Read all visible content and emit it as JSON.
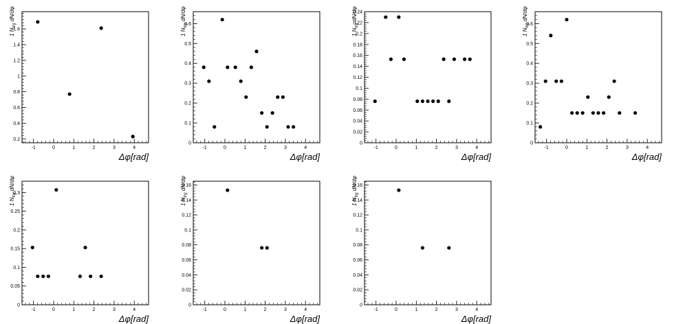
{
  "chart_data": [
    {
      "type": "scatter",
      "xlabel": "Δφ[rad]",
      "ylabel": "1/N_trg dN/dφ",
      "xlim": [
        -1.57,
        4.71
      ],
      "ylim": [
        0.15,
        1.82
      ],
      "xticks": [
        "-1",
        "0",
        "1",
        "2",
        "3",
        "4"
      ],
      "yticks": [
        "0.2",
        "0.4",
        "0.6",
        "0.8",
        "1",
        "1.2",
        "1.4",
        "1.6"
      ],
      "x": [
        -0.79,
        0.79,
        2.36,
        3.93
      ],
      "y": [
        1.69,
        0.77,
        1.61,
        0.23
      ]
    },
    {
      "type": "scatter",
      "xlabel": "Δφ[rad]",
      "ylabel": "1/N_trg dN/dφ",
      "xlim": [
        -1.57,
        4.71
      ],
      "ylim": [
        0,
        0.66
      ],
      "xticks": [
        "-1",
        "0",
        "1",
        "2",
        "3",
        "4"
      ],
      "yticks": [
        "0",
        "0.1",
        "0.2",
        "0.3",
        "0.4",
        "0.5",
        "0.6"
      ],
      "x": [
        -1.05,
        -0.79,
        -0.52,
        -0.13,
        0.13,
        0.52,
        0.79,
        1.05,
        1.31,
        1.57,
        1.83,
        2.09,
        2.36,
        2.62,
        2.88,
        3.14,
        3.4
      ],
      "y": [
        0.38,
        0.31,
        0.08,
        0.62,
        0.38,
        0.38,
        0.31,
        0.23,
        0.38,
        0.46,
        0.15,
        0.08,
        0.15,
        0.23,
        0.23,
        0.08,
        0.08
      ]
    },
    {
      "type": "scatter",
      "xlabel": "Δφ[rad]",
      "ylabel": "1/N_trg dN/dφ",
      "xlim": [
        -1.57,
        4.71
      ],
      "ylim": [
        0,
        0.24
      ],
      "xticks": [
        "-1",
        "0",
        "1",
        "2",
        "3",
        "4"
      ],
      "yticks": [
        "0",
        "0.02",
        "0.04",
        "0.06",
        "0.08",
        "0.1",
        "0.12",
        "0.14",
        "0.16",
        "0.18",
        "0.2",
        "0.22",
        "0.24"
      ],
      "x": [
        -1.05,
        -0.52,
        -0.26,
        0.13,
        0.39,
        1.05,
        1.31,
        1.57,
        1.83,
        2.09,
        2.36,
        2.62,
        2.88,
        3.4,
        3.66
      ],
      "y": [
        0.076,
        0.23,
        0.153,
        0.23,
        0.153,
        0.076,
        0.076,
        0.076,
        0.076,
        0.076,
        0.153,
        0.076,
        0.153,
        0.153,
        0.153
      ]
    },
    {
      "type": "scatter",
      "xlabel": "Δφ[rad]",
      "ylabel": "1/N_trg dN/dφ",
      "xlim": [
        -1.57,
        4.71
      ],
      "ylim": [
        0,
        0.66
      ],
      "xticks": [
        "-1",
        "0",
        "1",
        "2",
        "3",
        "4"
      ],
      "yticks": [
        "0",
        "0.1",
        "0.2",
        "0.3",
        "0.4",
        "0.5",
        "0.6"
      ],
      "x": [
        -1.31,
        -1.05,
        -0.79,
        -0.52,
        -0.26,
        0.0,
        0.26,
        0.52,
        0.79,
        1.05,
        1.31,
        1.57,
        1.83,
        2.09,
        2.36,
        2.62,
        3.4
      ],
      "y": [
        0.08,
        0.31,
        0.54,
        0.31,
        0.31,
        0.62,
        0.15,
        0.15,
        0.15,
        0.23,
        0.15,
        0.15,
        0.15,
        0.23,
        0.31,
        0.15,
        0.15
      ]
    },
    {
      "type": "scatter",
      "xlabel": "Δφ[rad]",
      "ylabel": "1/N_trg dN/dφ",
      "xlim": [
        -1.57,
        4.71
      ],
      "ylim": [
        0,
        0.33
      ],
      "xticks": [
        "-1",
        "0",
        "1",
        "2",
        "3",
        "4"
      ],
      "yticks": [
        "0",
        "0.05",
        "0.1",
        "0.15",
        "0.2",
        "0.25",
        "0.3"
      ],
      "x": [
        -1.05,
        -0.79,
        -0.52,
        -0.26,
        0.13,
        1.31,
        1.57,
        1.83,
        2.36
      ],
      "y": [
        0.153,
        0.076,
        0.076,
        0.076,
        0.307,
        0.076,
        0.153,
        0.076,
        0.076
      ]
    },
    {
      "type": "scatter",
      "xlabel": "Δφ[rad]",
      "ylabel": "1/N_trg dN/dφ",
      "xlim": [
        -1.57,
        4.71
      ],
      "ylim": [
        0,
        0.165
      ],
      "xticks": [
        "-1",
        "0",
        "1",
        "2",
        "3",
        "4"
      ],
      "yticks": [
        "0",
        "0.02",
        "0.04",
        "0.06",
        "0.08",
        "0.1",
        "0.12",
        "0.14",
        "0.16"
      ],
      "x": [
        0.13,
        1.83,
        2.09
      ],
      "y": [
        0.153,
        0.076,
        0.076
      ]
    },
    {
      "type": "scatter",
      "xlabel": "Δφ[rad]",
      "ylabel": "1/N_trg dN/dφ",
      "xlim": [
        -1.57,
        4.71
      ],
      "ylim": [
        0,
        0.165
      ],
      "xticks": [
        "-1",
        "0",
        "1",
        "2",
        "3",
        "4"
      ],
      "yticks": [
        "0",
        "0.02",
        "0.04",
        "0.06",
        "0.08",
        "0.1",
        "0.12",
        "0.14",
        "0.16"
      ],
      "x": [
        0.13,
        1.31,
        2.62
      ],
      "y": [
        0.153,
        0.076,
        0.076
      ]
    }
  ]
}
